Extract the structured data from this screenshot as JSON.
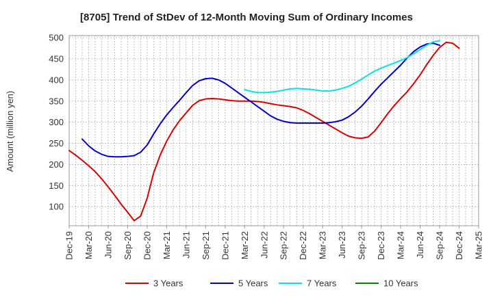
{
  "chart_data": {
    "type": "line",
    "title": "[8705]  Trend of StDev of 12-Month Moving Sum of Ordinary Incomes",
    "ylabel": "Amount (million yen)",
    "xlabel": "",
    "ylim": [
      55,
      505
    ],
    "yticks": [
      100,
      150,
      200,
      250,
      300,
      350,
      400,
      450,
      500
    ],
    "x_start": "2019-12",
    "x_end": "2025-03",
    "xticks": [
      "Dec-19",
      "Mar-20",
      "Jun-20",
      "Sep-20",
      "Dec-20",
      "Mar-21",
      "Jun-21",
      "Sep-21",
      "Dec-21",
      "Mar-22",
      "Jun-22",
      "Sep-22",
      "Dec-22",
      "Mar-23",
      "Jun-23",
      "Sep-23",
      "Dec-23",
      "Mar-24",
      "Jun-24",
      "Sep-24",
      "Dec-24",
      "Mar-25"
    ],
    "grid": true,
    "legend_position": "bottom",
    "series": [
      {
        "name": "3 Years",
        "color": "#dd0000",
        "start": "2019-12",
        "values": [
          233,
          222,
          210,
          197,
          183,
          166,
          147,
          127,
          106,
          87,
          67,
          78,
          120,
          180,
          222,
          255,
          282,
          304,
          322,
          340,
          351,
          355,
          356,
          355,
          353,
          351,
          350,
          350,
          350,
          349,
          347,
          344,
          341,
          339,
          337,
          334,
          328,
          320,
          311,
          302,
          293,
          284,
          275,
          267,
          263,
          262,
          265,
          279,
          299,
          320,
          339,
          356,
          372,
          391,
          412,
          436,
          458,
          477,
          489,
          487,
          475
        ]
      },
      {
        "name": "5 Years",
        "color": "#0000cc",
        "start": "2020-02",
        "values": [
          260,
          244,
          232,
          224,
          219,
          218,
          218,
          219,
          221,
          229,
          246,
          272,
          296,
          317,
          335,
          352,
          370,
          387,
          398,
          403,
          404,
          400,
          392,
          381,
          370,
          359,
          348,
          337,
          326,
          315,
          307,
          302,
          299,
          298,
          298,
          298,
          298,
          298,
          299,
          301,
          305,
          313,
          324,
          338,
          355,
          373,
          390,
          405,
          420,
          435,
          452,
          467,
          478,
          485,
          487,
          482
        ]
      },
      {
        "name": "7 Years",
        "color": "#00e5e5",
        "start": "2022-03",
        "values": [
          377,
          373,
          370,
          370,
          371,
          373,
          376,
          379,
          380,
          379,
          378,
          376,
          374,
          374,
          376,
          380,
          385,
          393,
          402,
          412,
          421,
          428,
          434,
          440,
          446,
          453,
          462,
          472,
          482,
          490,
          493
        ]
      },
      {
        "name": "10 Years",
        "color": "#008800",
        "start": "2025-03",
        "values": []
      }
    ]
  }
}
